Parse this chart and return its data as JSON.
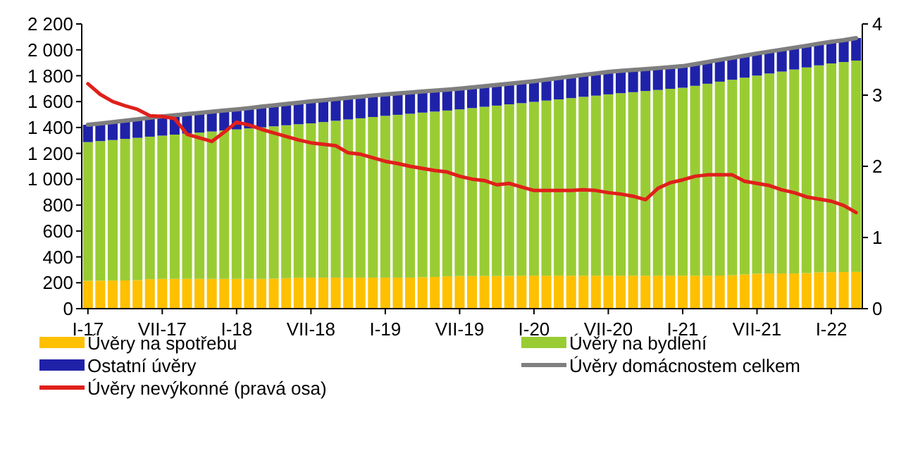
{
  "chart_data": {
    "type": "bar",
    "stacked": true,
    "categories": [
      "I-17",
      null,
      null,
      null,
      null,
      null,
      "VII-17",
      null,
      null,
      null,
      null,
      null,
      "I-18",
      null,
      null,
      null,
      null,
      null,
      "VII-18",
      null,
      null,
      null,
      null,
      null,
      "I-19",
      null,
      null,
      null,
      null,
      null,
      "VII-19",
      null,
      null,
      null,
      null,
      null,
      "I-20",
      null,
      null,
      null,
      null,
      null,
      "VII-20",
      null,
      null,
      null,
      null,
      null,
      "I-21",
      null,
      null,
      null,
      null,
      null,
      "VII-21",
      null,
      null,
      null,
      null,
      null,
      "I-22",
      null,
      null
    ],
    "series": [
      {
        "name": "Úvěry na spotřebu",
        "color": "#ffc000",
        "values": [
          215,
          216,
          217,
          218,
          220,
          228,
          230,
          230,
          230,
          230,
          230,
          230,
          230,
          230,
          230,
          232,
          235,
          240,
          240,
          240,
          240,
          240,
          240,
          240,
          240,
          240,
          240,
          243,
          245,
          250,
          252,
          252,
          252,
          252,
          253,
          255,
          255,
          255,
          255,
          255,
          255,
          255,
          255,
          255,
          255,
          255,
          255,
          255,
          255,
          255,
          255,
          256,
          258,
          265,
          270,
          272,
          272,
          272,
          275,
          280,
          282,
          283,
          284
        ]
      },
      {
        "name": "Úvěry na bydlení",
        "color": "#99cc33",
        "values": [
          1072,
          1079,
          1086,
          1094,
          1100,
          1101,
          1107,
          1115,
          1123,
          1131,
          1139,
          1147,
          1155,
          1163,
          1171,
          1177,
          1182,
          1185,
          1192,
          1202,
          1212,
          1222,
          1231,
          1241,
          1250,
          1258,
          1266,
          1272,
          1278,
          1281,
          1288,
          1298,
          1308,
          1317,
          1326,
          1333,
          1343,
          1353,
          1362,
          1372,
          1382,
          1391,
          1401,
          1410,
          1418,
          1427,
          1435,
          1444,
          1452,
          1467,
          1483,
          1498,
          1511,
          1520,
          1531,
          1545,
          1560,
          1576,
          1589,
          1600,
          1613,
          1623,
          1633
        ]
      },
      {
        "name": "Ostatní úvěry",
        "color": "#1f22a8",
        "values": [
          134,
          136,
          139,
          141,
          144,
          146,
          149,
          150,
          151,
          152,
          153,
          154,
          155,
          157,
          160,
          162,
          165,
          167,
          170,
          169,
          168,
          168,
          167,
          167,
          166,
          165,
          164,
          163,
          162,
          161,
          160,
          160,
          160,
          160,
          160,
          160,
          160,
          162,
          165,
          167,
          170,
          172,
          174,
          173,
          172,
          170,
          169,
          168,
          167,
          168,
          168,
          169,
          170,
          170,
          171,
          170,
          170,
          169,
          168,
          168,
          167,
          169,
          174
        ]
      },
      {
        "name": "Úvěry domácnostem celkem",
        "type": "line",
        "color": "#7f7f7f",
        "values": [
          1421,
          1431,
          1442,
          1453,
          1464,
          1475,
          1486,
          1495,
          1504,
          1513,
          1522,
          1531,
          1540,
          1550,
          1561,
          1571,
          1582,
          1592,
          1602,
          1611,
          1620,
          1630,
          1638,
          1648,
          1656,
          1663,
          1670,
          1678,
          1685,
          1692,
          1700,
          1710,
          1720,
          1729,
          1739,
          1748,
          1758,
          1770,
          1782,
          1794,
          1807,
          1818,
          1830,
          1838,
          1845,
          1852,
          1859,
          1867,
          1874,
          1890,
          1906,
          1923,
          1939,
          1955,
          1972,
          1987,
          2002,
          2017,
          2032,
          2048,
          2062,
          2075,
          2091
        ]
      },
      {
        "name": "Úvěry nevýkonné (pravá osa)",
        "type": "line",
        "axis": "y2",
        "color": "#e0201b",
        "values": [
          3.16,
          3.01,
          2.91,
          2.85,
          2.8,
          2.71,
          2.7,
          2.67,
          2.45,
          2.4,
          2.35,
          2.48,
          2.62,
          2.58,
          2.52,
          2.47,
          2.42,
          2.37,
          2.33,
          2.31,
          2.29,
          2.19,
          2.17,
          2.12,
          2.07,
          2.04,
          2.0,
          1.97,
          1.94,
          1.92,
          1.86,
          1.82,
          1.8,
          1.74,
          1.76,
          1.71,
          1.66,
          1.66,
          1.66,
          1.66,
          1.67,
          1.66,
          1.63,
          1.61,
          1.58,
          1.53,
          1.69,
          1.77,
          1.81,
          1.86,
          1.88,
          1.88,
          1.88,
          1.79,
          1.76,
          1.73,
          1.67,
          1.63,
          1.57,
          1.54,
          1.51,
          1.45,
          1.35
        ]
      }
    ],
    "ylim": [
      0,
      2200
    ],
    "yticks": [
      0,
      200,
      400,
      600,
      800,
      {
        "value": 1000,
        "label": "1 000"
      },
      {
        "value": 1200,
        "label": "1 200"
      },
      {
        "value": 1400,
        "label": "1 400"
      },
      {
        "value": 1600,
        "label": "1 600"
      },
      {
        "value": 1800,
        "label": "1 800"
      },
      {
        "value": 2000,
        "label": "2 000"
      },
      {
        "value": 2200,
        "label": "2 200"
      }
    ],
    "y2lim": [
      0,
      4
    ],
    "y2ticks": [
      0,
      1,
      2,
      3,
      4
    ],
    "grid": false,
    "legend": "bottom",
    "marker": "none",
    "line_style": "solid"
  }
}
